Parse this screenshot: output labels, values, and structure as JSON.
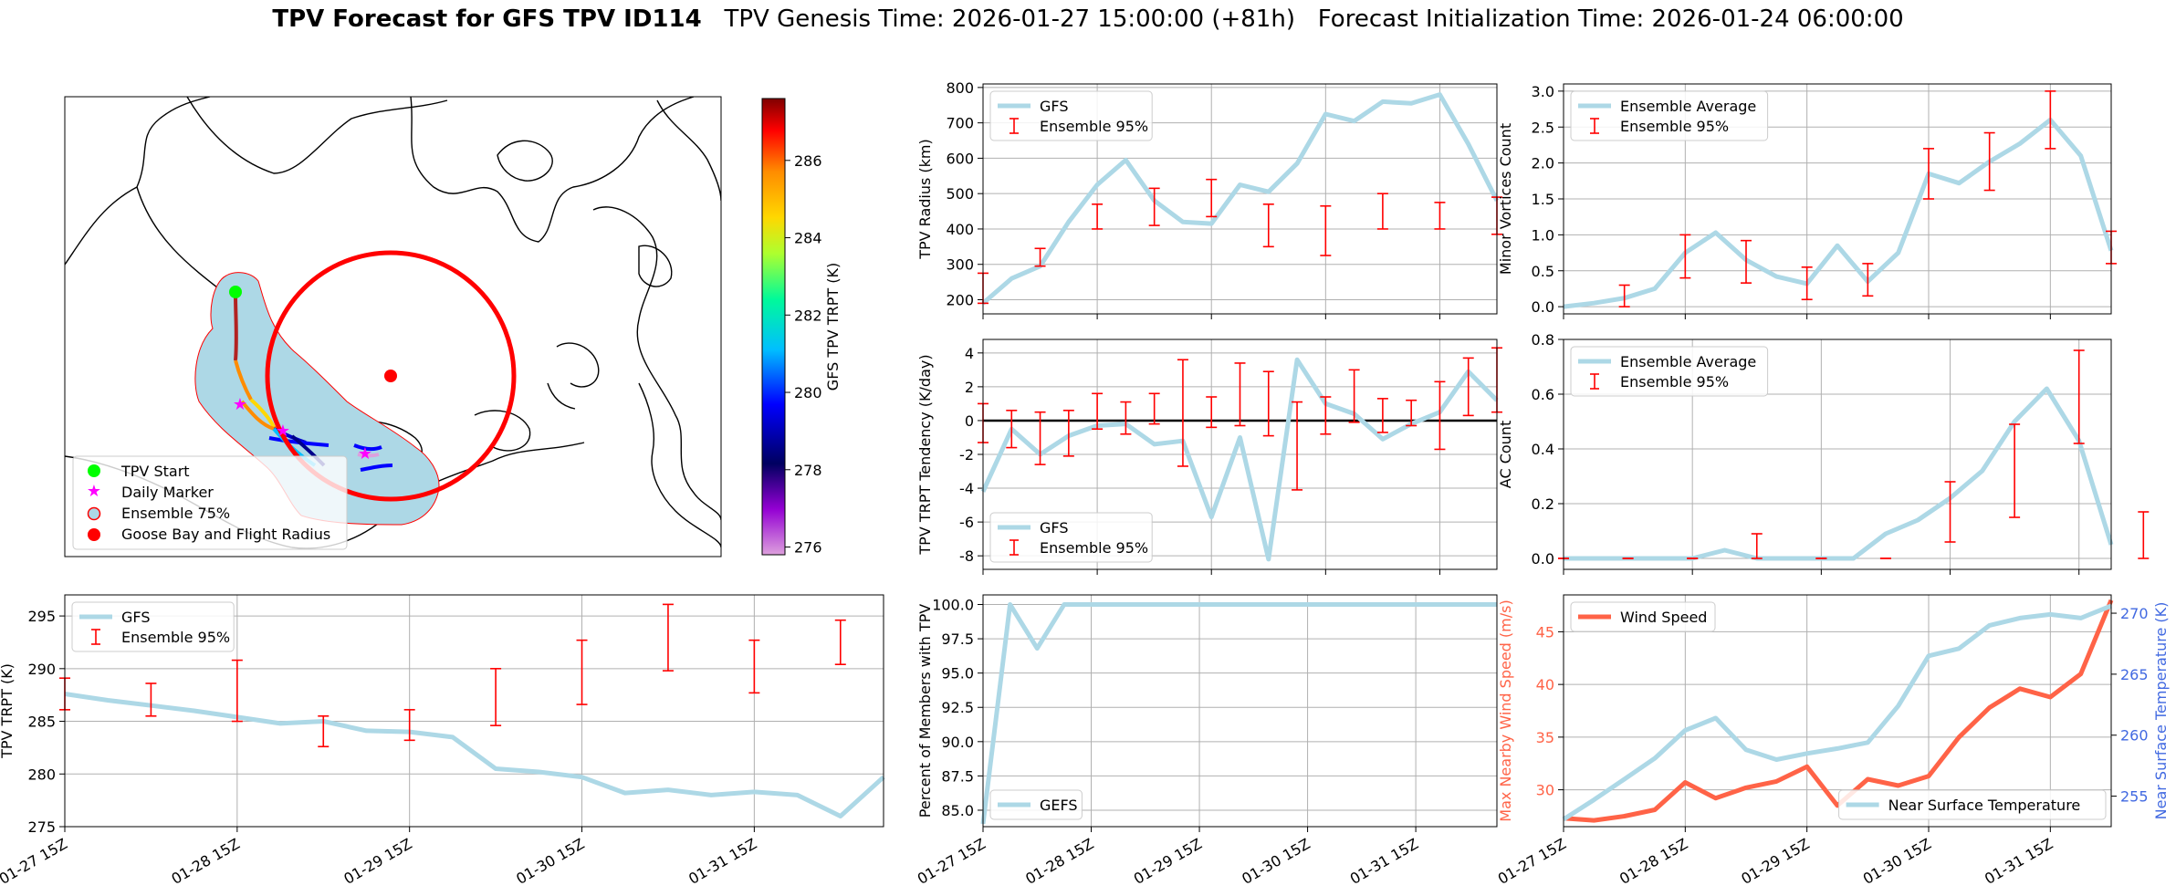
{
  "header": {
    "title_bold": "TPV Forecast for GFS TPV ID114",
    "genesis": "TPV Genesis Time: 2026-01-27 15:00:00 (+81h)",
    "init": "Forecast Initialization Time: 2026-01-24 06:00:00"
  },
  "colors": {
    "gfs": "#add8e6",
    "ens": "#ff0000",
    "wind": "#ff6347",
    "temp_axis": "#4169e1",
    "grid": "#b0b0b0"
  },
  "map": {
    "legend": [
      "TPV Start",
      "Daily Marker",
      "Ensemble 75%",
      "Goose Bay and Flight Radius"
    ],
    "colorbar": {
      "label": "GFS TPV TRPT (K)",
      "ticks": [
        276,
        278,
        280,
        282,
        284,
        286
      ],
      "range": [
        275.8,
        287.6
      ]
    }
  },
  "time_ticks": [
    "01-27 15Z",
    "01-28 15Z",
    "01-29 15Z",
    "01-30 15Z",
    "01-31 15Z"
  ],
  "chart_data": [
    {
      "id": "trpt",
      "type": "line",
      "ylabel": "TPV TRPT (K)",
      "ylim": [
        275,
        297
      ],
      "yticks": [
        275,
        280,
        285,
        290,
        295
      ],
      "legend": [
        "GFS",
        "Ensemble 95%"
      ],
      "legend_loc": "upper-left",
      "series": [
        {
          "name": "GFS",
          "values": [
            287.6,
            287.0,
            286.5,
            286.0,
            285.4,
            284.8,
            285.0,
            284.1,
            284.0,
            283.5,
            280.5,
            280.2,
            279.7,
            278.2,
            278.5,
            278.0,
            278.3,
            278.0,
            276.0,
            279.7
          ]
        }
      ],
      "errorbars": [
        {
          "i": 0,
          "lo": 286.1,
          "hi": 289.1
        },
        {
          "i": 2,
          "lo": 285.5,
          "hi": 288.6
        },
        {
          "i": 4,
          "lo": 285.0,
          "hi": 290.8
        },
        {
          "i": 6,
          "lo": 282.6,
          "hi": 285.5
        },
        {
          "i": 8,
          "lo": 283.2,
          "hi": 286.1
        },
        {
          "i": 10,
          "lo": 284.6,
          "hi": 290.0
        },
        {
          "i": 12,
          "lo": 286.6,
          "hi": 292.7
        },
        {
          "i": 14,
          "lo": 289.8,
          "hi": 296.1
        },
        {
          "i": 16,
          "lo": 287.7,
          "hi": 292.7
        },
        {
          "i": 18,
          "lo": 290.4,
          "hi": 294.6
        }
      ]
    },
    {
      "id": "radius",
      "type": "line",
      "ylabel": "TPV Radius (km)",
      "ylim": [
        160,
        810
      ],
      "yticks": [
        200,
        300,
        400,
        500,
        600,
        700,
        800
      ],
      "legend": [
        "GFS",
        "Ensemble 95%"
      ],
      "legend_loc": "upper-left",
      "series": [
        {
          "name": "GFS",
          "values": [
            190,
            260,
            295,
            420,
            525,
            595,
            480,
            420,
            415,
            525,
            505,
            585,
            725,
            705,
            760,
            755,
            780,
            640,
            480
          ]
        }
      ],
      "errorbars": [
        {
          "i": 0,
          "lo": 190,
          "hi": 275
        },
        {
          "i": 2,
          "lo": 295,
          "hi": 345
        },
        {
          "i": 4,
          "lo": 400,
          "hi": 470
        },
        {
          "i": 6,
          "lo": 410,
          "hi": 515
        },
        {
          "i": 8,
          "lo": 435,
          "hi": 540
        },
        {
          "i": 10,
          "lo": 350,
          "hi": 470
        },
        {
          "i": 12,
          "lo": 325,
          "hi": 465
        },
        {
          "i": 14,
          "lo": 400,
          "hi": 500
        },
        {
          "i": 16,
          "lo": 400,
          "hi": 475
        },
        {
          "i": 18,
          "lo": 385,
          "hi": 490
        }
      ]
    },
    {
      "id": "tendency",
      "type": "line",
      "ylabel": "TPV TRPT Tendency (K/day)",
      "ylim": [
        -8.8,
        4.8
      ],
      "yticks": [
        -8,
        -6,
        -4,
        -2,
        0,
        2,
        4
      ],
      "legend": [
        "GFS",
        "Ensemble 95%"
      ],
      "legend_loc": "lower-left",
      "series": [
        {
          "name": "GFS",
          "values": [
            -4.2,
            -0.5,
            -2.0,
            -0.9,
            -0.3,
            -0.2,
            -1.4,
            -1.2,
            -5.7,
            -1.0,
            -8.2,
            3.6,
            1.0,
            0.4,
            -1.1,
            -0.2,
            0.5,
            2.9,
            1.2
          ]
        }
      ],
      "errorbars": [
        {
          "i": 0,
          "lo": -1.3,
          "hi": 1.0
        },
        {
          "i": 1,
          "lo": -1.6,
          "hi": 0.6
        },
        {
          "i": 2,
          "lo": -2.6,
          "hi": 0.5
        },
        {
          "i": 3,
          "lo": -2.1,
          "hi": 0.6
        },
        {
          "i": 4,
          "lo": -0.5,
          "hi": 1.6
        },
        {
          "i": 5,
          "lo": -0.8,
          "hi": 1.1
        },
        {
          "i": 6,
          "lo": -0.2,
          "hi": 1.6
        },
        {
          "i": 7,
          "lo": -2.7,
          "hi": 3.6
        },
        {
          "i": 8,
          "lo": -0.4,
          "hi": 1.4
        },
        {
          "i": 9,
          "lo": -0.3,
          "hi": 3.4
        },
        {
          "i": 10,
          "lo": -0.9,
          "hi": 2.9
        },
        {
          "i": 11,
          "lo": -4.1,
          "hi": 1.1
        },
        {
          "i": 12,
          "lo": -0.8,
          "hi": 1.4
        },
        {
          "i": 13,
          "lo": -0.1,
          "hi": 3.0
        },
        {
          "i": 14,
          "lo": -0.7,
          "hi": 1.3
        },
        {
          "i": 15,
          "lo": -0.3,
          "hi": 1.2
        },
        {
          "i": 16,
          "lo": -1.7,
          "hi": 2.3
        },
        {
          "i": 17,
          "lo": 0.3,
          "hi": 3.7
        },
        {
          "i": 18,
          "lo": 0.5,
          "hi": 4.3
        }
      ]
    },
    {
      "id": "percent",
      "type": "line",
      "ylabel": "Percent of Members with TPV",
      "ylim": [
        83.8,
        100.7
      ],
      "yticks": [
        85.0,
        87.5,
        90.0,
        92.5,
        95.0,
        97.5,
        100.0
      ],
      "legend": [
        "GEFS"
      ],
      "legend_loc": "lower-left",
      "series": [
        {
          "name": "GEFS",
          "values": [
            84.0,
            100,
            96.8,
            100,
            100,
            100,
            100,
            100,
            100,
            100,
            100,
            100,
            100,
            100,
            100,
            100,
            100,
            100,
            100,
            100
          ]
        }
      ],
      "errorbars": []
    },
    {
      "id": "minor",
      "type": "line",
      "ylabel": "Minor Vortices Count",
      "ylim": [
        -0.1,
        3.1
      ],
      "yticks": [
        0.0,
        0.5,
        1.0,
        1.5,
        2.0,
        2.5,
        3.0
      ],
      "legend": [
        "Ensemble Average",
        "Ensemble 95%"
      ],
      "legend_loc": "upper-left",
      "series": [
        {
          "name": "Ensemble Average",
          "values": [
            0.0,
            0.05,
            0.12,
            0.25,
            0.75,
            1.03,
            0.65,
            0.42,
            0.32,
            0.85,
            0.35,
            0.75,
            1.85,
            1.72,
            2.02,
            2.27,
            2.6,
            2.1,
            0.78
          ]
        }
      ],
      "errorbars": [
        {
          "i": 2,
          "lo": 0.0,
          "hi": 0.3
        },
        {
          "i": 4,
          "lo": 0.4,
          "hi": 1.0
        },
        {
          "i": 6,
          "lo": 0.33,
          "hi": 0.92
        },
        {
          "i": 8,
          "lo": 0.1,
          "hi": 0.55
        },
        {
          "i": 10,
          "lo": 0.15,
          "hi": 0.6
        },
        {
          "i": 12,
          "lo": 1.5,
          "hi": 2.2
        },
        {
          "i": 14,
          "lo": 1.62,
          "hi": 2.42
        },
        {
          "i": 16,
          "lo": 2.2,
          "hi": 3.0
        },
        {
          "i": 18,
          "lo": 0.6,
          "hi": 1.05
        }
      ]
    },
    {
      "id": "ac",
      "type": "line",
      "ylabel": "AC Count",
      "ylim": [
        -0.04,
        0.8
      ],
      "yticks": [
        0.0,
        0.2,
        0.4,
        0.6,
        0.8
      ],
      "legend": [
        "Ensemble Average",
        "Ensemble 95%"
      ],
      "legend_loc": "upper-left",
      "series": [
        {
          "name": "Ensemble Average",
          "values": [
            0,
            0,
            0,
            0,
            0,
            0.03,
            0,
            0,
            0,
            0,
            0.09,
            0.14,
            0.22,
            0.32,
            0.5,
            0.62,
            0.43,
            0.05
          ]
        }
      ],
      "errorbars": [
        {
          "i": 0,
          "lo": 0,
          "hi": 0
        },
        {
          "i": 2,
          "lo": 0,
          "hi": 0
        },
        {
          "i": 4,
          "lo": 0,
          "hi": 0
        },
        {
          "i": 6,
          "lo": 0,
          "hi": 0.09
        },
        {
          "i": 8,
          "lo": 0,
          "hi": 0
        },
        {
          "i": 10,
          "lo": 0,
          "hi": 0
        },
        {
          "i": 12,
          "lo": 0.06,
          "hi": 0.28
        },
        {
          "i": 14,
          "lo": 0.15,
          "hi": 0.49
        },
        {
          "i": 16,
          "lo": 0.42,
          "hi": 0.76
        },
        {
          "i": 18,
          "lo": 0,
          "hi": 0.17
        }
      ]
    },
    {
      "id": "wind",
      "type": "line",
      "ylabel": "Max Nearby Wind Speed (m/s)",
      "ylim": [
        26.5,
        48.5
      ],
      "yticks": [
        30,
        35,
        40,
        45
      ],
      "y2label": "Near Surface Temperature (K)",
      "y2lim": [
        252.5,
        271.5
      ],
      "y2ticks": [
        255,
        260,
        265,
        270
      ],
      "legend": [
        "Wind Speed"
      ],
      "legend2": [
        "Near Surface Temperature"
      ],
      "series": [
        {
          "name": "Wind Speed",
          "axis": "left",
          "values": [
            27.3,
            27.1,
            27.5,
            28.1,
            30.7,
            29.2,
            30.2,
            30.8,
            32.2,
            28.5,
            31.0,
            30.4,
            31.3,
            35.0,
            37.8,
            39.6,
            38.8,
            41.0,
            48.0
          ]
        },
        {
          "name": "Near Surface Temperature",
          "axis": "right",
          "values": [
            253.1,
            254.7,
            256.4,
            258.1,
            260.4,
            261.4,
            258.8,
            258.0,
            258.5,
            258.9,
            259.4,
            262.4,
            266.5,
            267.1,
            269.0,
            269.6,
            269.9,
            269.6,
            270.6
          ]
        }
      ],
      "errorbars": []
    }
  ]
}
